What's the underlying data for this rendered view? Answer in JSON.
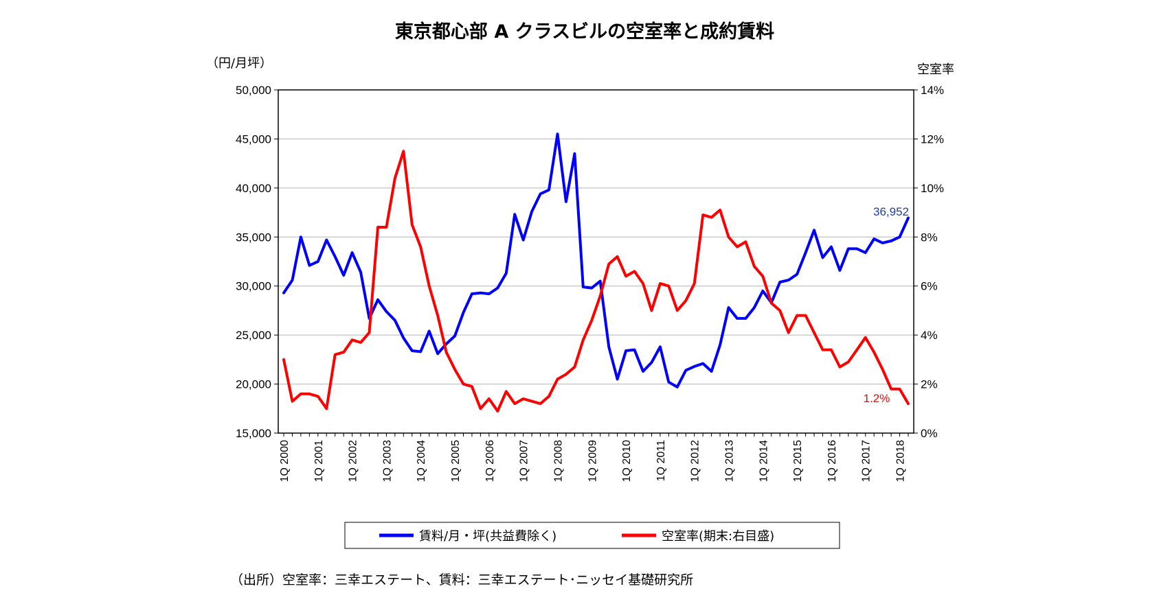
{
  "chart_data": {
    "type": "line",
    "title": "東京都心部 A クラスビルの空室率と成約賃料",
    "ylabel_left": "（円/月坪）",
    "ylabel_right": "空室率",
    "ylim_left": [
      15000,
      50000
    ],
    "yticks_left": [
      "15,000",
      "20,000",
      "25,000",
      "30,000",
      "35,000",
      "40,000",
      "45,000",
      "50,000"
    ],
    "ylim_right": [
      0,
      14
    ],
    "yticks_right": [
      "0%",
      "2%",
      "4%",
      "6%",
      "8%",
      "10%",
      "12%",
      "14%"
    ],
    "x_start": "1Q 2000",
    "x_end": "2Q 2018",
    "x_tick_labels": [
      "1Q 2000",
      "1Q 2001",
      "1Q 2002",
      "1Q 2003",
      "1Q 2004",
      "1Q 2005",
      "1Q 2006",
      "1Q 2007",
      "1Q 2008",
      "1Q 2009",
      "1Q 2010",
      "1Q 2011",
      "1Q 2012",
      "1Q 2013",
      "1Q 2014",
      "1Q 2015",
      "1Q 2016",
      "1Q 2017",
      "1Q 2018"
    ],
    "grid": "horizontal",
    "legend_position": "bottom",
    "series": [
      {
        "name": "賃料/月・坪(共益費除く)",
        "axis": "left",
        "color": "#0000ff",
        "values": [
          29300,
          30600,
          35000,
          32100,
          32500,
          34700,
          33000,
          31100,
          33400,
          31400,
          26700,
          28600,
          27400,
          26500,
          24700,
          23400,
          23300,
          25400,
          23100,
          24100,
          24900,
          27300,
          29200,
          29300,
          29200,
          29800,
          31300,
          37300,
          34700,
          37600,
          39400,
          39800,
          45500,
          38600,
          43500,
          29900,
          29800,
          30500,
          23800,
          20500,
          23400,
          23500,
          21300,
          22200,
          23800,
          20200,
          19700,
          21400,
          21800,
          22100,
          21300,
          24000,
          27800,
          26700,
          26700,
          27800,
          29500,
          28300,
          30400,
          30600,
          31200,
          33400,
          35700,
          32900,
          34000,
          31600,
          33800,
          33800,
          33400,
          34800,
          34400,
          34600,
          35000,
          36952
        ]
      },
      {
        "name": "空室率(期末:右目盛)",
        "axis": "right",
        "color": "#ff0000",
        "values": [
          3.0,
          1.3,
          1.6,
          1.6,
          1.5,
          1.0,
          3.2,
          3.3,
          3.8,
          3.7,
          4.1,
          8.4,
          8.4,
          10.4,
          11.5,
          8.5,
          7.6,
          6.0,
          4.8,
          3.3,
          2.6,
          2.0,
          1.9,
          1.0,
          1.4,
          0.9,
          1.7,
          1.2,
          1.4,
          1.3,
          1.2,
          1.5,
          2.2,
          2.4,
          2.7,
          3.8,
          4.6,
          5.6,
          6.9,
          7.2,
          6.4,
          6.6,
          6.1,
          5.0,
          6.1,
          6.0,
          5.0,
          5.4,
          6.1,
          8.9,
          8.8,
          9.1,
          8.0,
          7.6,
          7.8,
          6.8,
          6.4,
          5.3,
          5.0,
          4.1,
          4.8,
          4.8,
          4.1,
          3.4,
          3.4,
          2.7,
          2.9,
          3.4,
          3.9,
          3.3,
          2.6,
          1.8,
          1.8,
          1.2
        ]
      }
    ],
    "annotations": [
      {
        "series": 0,
        "text": "36,952"
      },
      {
        "series": 1,
        "text": "1.2%"
      }
    ]
  },
  "source": "（出所）空室率：三幸エステート、賃料：三幸エステート･ニッセイ基礎研究所"
}
